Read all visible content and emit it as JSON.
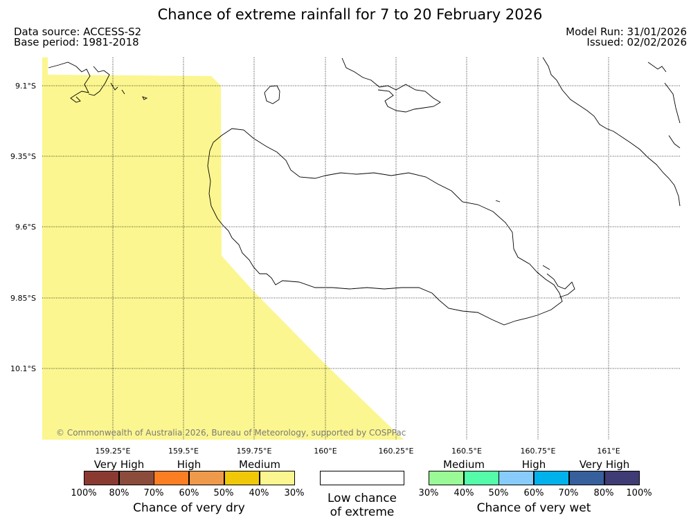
{
  "header": {
    "title": "Chance of extreme rainfall for 7 to 20 February 2026",
    "data_source": "Data source: ACCESS-S2",
    "base_period": "Base period: 1981-2018",
    "model_run": "Model Run: 31/01/2026",
    "issued": "Issued: 02/02/2026"
  },
  "map": {
    "lat_labels": [
      "9.1°S",
      "9.35°S",
      "9.6°S",
      "9.85°S",
      "10.1°S"
    ],
    "lon_labels": [
      "159.25°E",
      "159.5°E",
      "159.75°E",
      "160°E",
      "160.25°E",
      "160.5°E",
      "160.75°E",
      "161°E"
    ],
    "shading_color": "#fbf690",
    "shading_category": "Medium (chance of very dry, 30%–40%)",
    "copyright": "© Commonwealth of Australia 2026, Bureau of Meteorology, supported by COSPPac"
  },
  "legend": {
    "dry": {
      "headers": [
        "Very High",
        "High",
        "Medium"
      ],
      "colors": [
        "#8b3a32",
        "#8b4c3c",
        "#fc7e23",
        "#ee9a4a",
        "#f0c808",
        "#fbf690"
      ],
      "ticks": [
        "100%",
        "80%",
        "70%",
        "60%",
        "50%",
        "40%",
        "30%"
      ],
      "caption": "Chance of very dry"
    },
    "neutral": {
      "line1": "Low chance",
      "line2": "of extreme"
    },
    "wet": {
      "headers": [
        "Medium",
        "High",
        "Very High"
      ],
      "colors": [
        "#9afb96",
        "#54fcaa",
        "#87ccfa",
        "#00b2ec",
        "#365f9c",
        "#3e3b75"
      ],
      "ticks": [
        "30%",
        "40%",
        "50%",
        "60%",
        "70%",
        "80%",
        "100%"
      ],
      "caption": "Chance of very wet"
    }
  }
}
